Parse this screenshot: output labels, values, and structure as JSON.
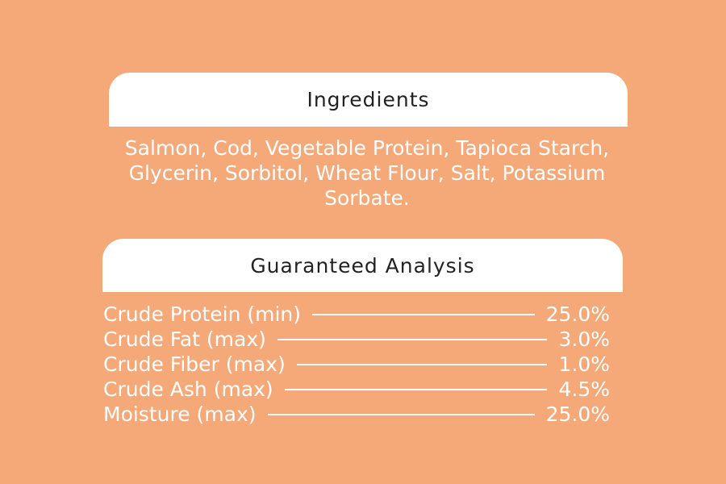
{
  "ingredients": {
    "title": "Ingredients",
    "lines": [
      "Salmon, Cod, Vegetable Protein, Tapioca Starch,",
      "Glycerin, Sorbitol, Wheat Flour, Salt, Potassium",
      "Sorbate."
    ]
  },
  "analysis": {
    "title": "Guaranteed Analysis",
    "rows": [
      [
        "Crude Protein (min)",
        "25.0%"
      ],
      [
        "Crude Fat (max)",
        "3.0%"
      ],
      [
        "Crude Fiber (max)",
        "1.0%"
      ],
      [
        "Crude Ash (max)",
        "4.5%"
      ],
      [
        "Moisture (max)",
        "25.0%"
      ]
    ]
  }
}
